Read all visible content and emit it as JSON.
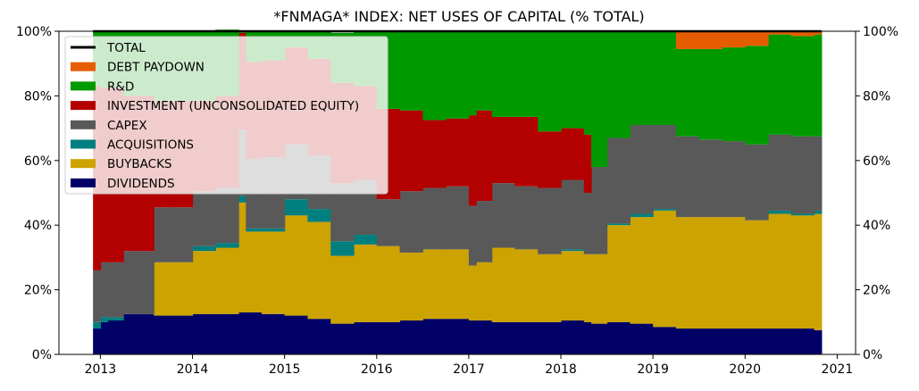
{
  "chart_data": {
    "type": "area",
    "stacked": true,
    "step": true,
    "title": "*FNMAGA* INDEX: NET USES OF CAPITAL (% TOTAL)",
    "xlabel": "",
    "ylabel": "",
    "xlim": [
      2012.55,
      2021.2
    ],
    "ylim": [
      0,
      100
    ],
    "x_ticks": [
      2013,
      2014,
      2015,
      2016,
      2017,
      2018,
      2019,
      2020,
      2021
    ],
    "x_tick_labels": [
      "2013",
      "2014",
      "2015",
      "2016",
      "2017",
      "2018",
      "2019",
      "2020",
      "2021"
    ],
    "y_ticks": [
      0,
      20,
      40,
      60,
      80,
      100
    ],
    "y_tick_labels_left": [
      "0%",
      "20%",
      "40%",
      "60%",
      "80%",
      "100%"
    ],
    "y_tick_labels_right": [
      "0%",
      "20%",
      "40%",
      "60%",
      "80%",
      "100%"
    ],
    "legend_position": "top-left",
    "legend": [
      "TOTAL",
      "DEBT PAYDOWN",
      "R&D",
      "INVESTMENT (UNCONSOLIDATED EQUITY)",
      "CAPEX",
      "ACQUISITIONS",
      "BUYBACKS",
      "DIVIDENDS"
    ],
    "x": [
      2012.92,
      2013.0,
      2013.08,
      2013.25,
      2013.5,
      2013.58,
      2013.75,
      2014.0,
      2014.25,
      2014.5,
      2014.58,
      2014.75,
      2015.0,
      2015.25,
      2015.5,
      2015.75,
      2016.0,
      2016.25,
      2016.5,
      2016.75,
      2017.0,
      2017.08,
      2017.25,
      2017.5,
      2017.75,
      2018.0,
      2018.25,
      2018.33,
      2018.5,
      2018.75,
      2019.0,
      2019.25,
      2019.5,
      2019.75,
      2020.0,
      2020.25,
      2020.5,
      2020.75
    ],
    "x_end": 2020.83,
    "series": [
      {
        "name": "DIVIDENDS",
        "color": "#000066",
        "values": [
          8,
          10,
          10.5,
          12.5,
          12.5,
          12,
          12,
          12.5,
          12.5,
          13,
          13,
          12.5,
          12,
          11,
          9.5,
          10,
          10,
          10.5,
          11,
          11,
          10.5,
          10.5,
          10,
          10,
          10,
          10.5,
          10,
          9.5,
          10,
          9.5,
          8.5,
          8,
          8,
          8,
          8,
          8,
          8,
          7.5
        ]
      },
      {
        "name": "BUYBACKS",
        "color": "#cca300",
        "values": [
          0,
          0,
          0,
          0,
          0,
          16.5,
          16.5,
          19.5,
          20.5,
          34,
          25,
          25.5,
          31,
          30,
          21,
          24,
          23.5,
          21,
          21.5,
          21.5,
          17,
          18,
          23,
          22.5,
          21,
          21.5,
          21,
          21.5,
          30,
          33,
          36,
          34.5,
          34.5,
          34.5,
          33.5,
          35.5,
          35,
          36
        ]
      },
      {
        "name": "ACQUISITIONS",
        "color": "#007f7f",
        "values": [
          2,
          1.5,
          1,
          0,
          0,
          0,
          0,
          1.5,
          1.5,
          2,
          1,
          1,
          5,
          4,
          4.5,
          3,
          0,
          0,
          0,
          0,
          0,
          0,
          0,
          0,
          0,
          0.5,
          0,
          0,
          0.5,
          1,
          0.5,
          0,
          0,
          0,
          0,
          1,
          0.5,
          1
        ]
      },
      {
        "name": "CAPEX",
        "color": "#595959",
        "values": [
          16,
          17,
          17,
          19.5,
          19.5,
          17,
          17,
          17,
          17,
          20.5,
          21.5,
          22,
          17,
          16.5,
          18,
          17,
          14.5,
          19,
          19,
          19.5,
          18.5,
          19,
          20,
          19.5,
          20.5,
          21.5,
          19,
          27,
          26.5,
          27.5,
          26,
          25,
          24,
          23.5,
          23.5,
          23.5,
          24,
          23
        ]
      },
      {
        "name": "INVESTMENT (UNCONSOLIDATED EQUITY)",
        "color": "#b30000",
        "values": [
          57,
          54,
          54,
          48,
          48,
          33,
          33,
          28,
          28.5,
          30,
          30,
          30,
          30,
          30,
          31,
          29,
          28,
          25,
          21,
          21,
          28,
          28,
          20.5,
          21.5,
          17.5,
          16,
          18,
          0,
          0,
          0,
          0,
          0,
          0,
          0,
          0,
          0,
          0,
          0
        ]
      },
      {
        "name": "R&D",
        "color": "#009900",
        "values": [
          17,
          17.5,
          17.5,
          20,
          20,
          21.5,
          21.5,
          21.5,
          20.5,
          0.5,
          9.5,
          9,
          5,
          8.5,
          15.5,
          17,
          24,
          24.5,
          27.5,
          27,
          26,
          24.5,
          26.5,
          26.5,
          31,
          30,
          32,
          42,
          33,
          29,
          29,
          27,
          28,
          29,
          30.5,
          31,
          31,
          31.5
        ]
      },
      {
        "name": "DEBT PAYDOWN",
        "color": "#e65c00",
        "values": [
          0,
          0,
          0,
          0,
          0,
          0,
          0,
          0,
          0,
          0,
          0,
          0,
          0,
          0,
          0,
          0,
          0,
          0,
          0,
          0,
          0,
          0,
          0,
          0,
          0,
          0,
          0,
          0,
          0,
          0,
          0,
          5.5,
          5.5,
          5,
          4.5,
          1,
          1.5,
          1
        ]
      },
      {
        "name": "TOTAL",
        "color": "#000000",
        "values": [
          100,
          100,
          100,
          100,
          100,
          100,
          100,
          100,
          100,
          100,
          100,
          100,
          100,
          100,
          100,
          100,
          100,
          100,
          100,
          100,
          100,
          100,
          100,
          100,
          100,
          100,
          100,
          100,
          100,
          100,
          100,
          100,
          100,
          100,
          100,
          100,
          100,
          100
        ]
      }
    ]
  }
}
